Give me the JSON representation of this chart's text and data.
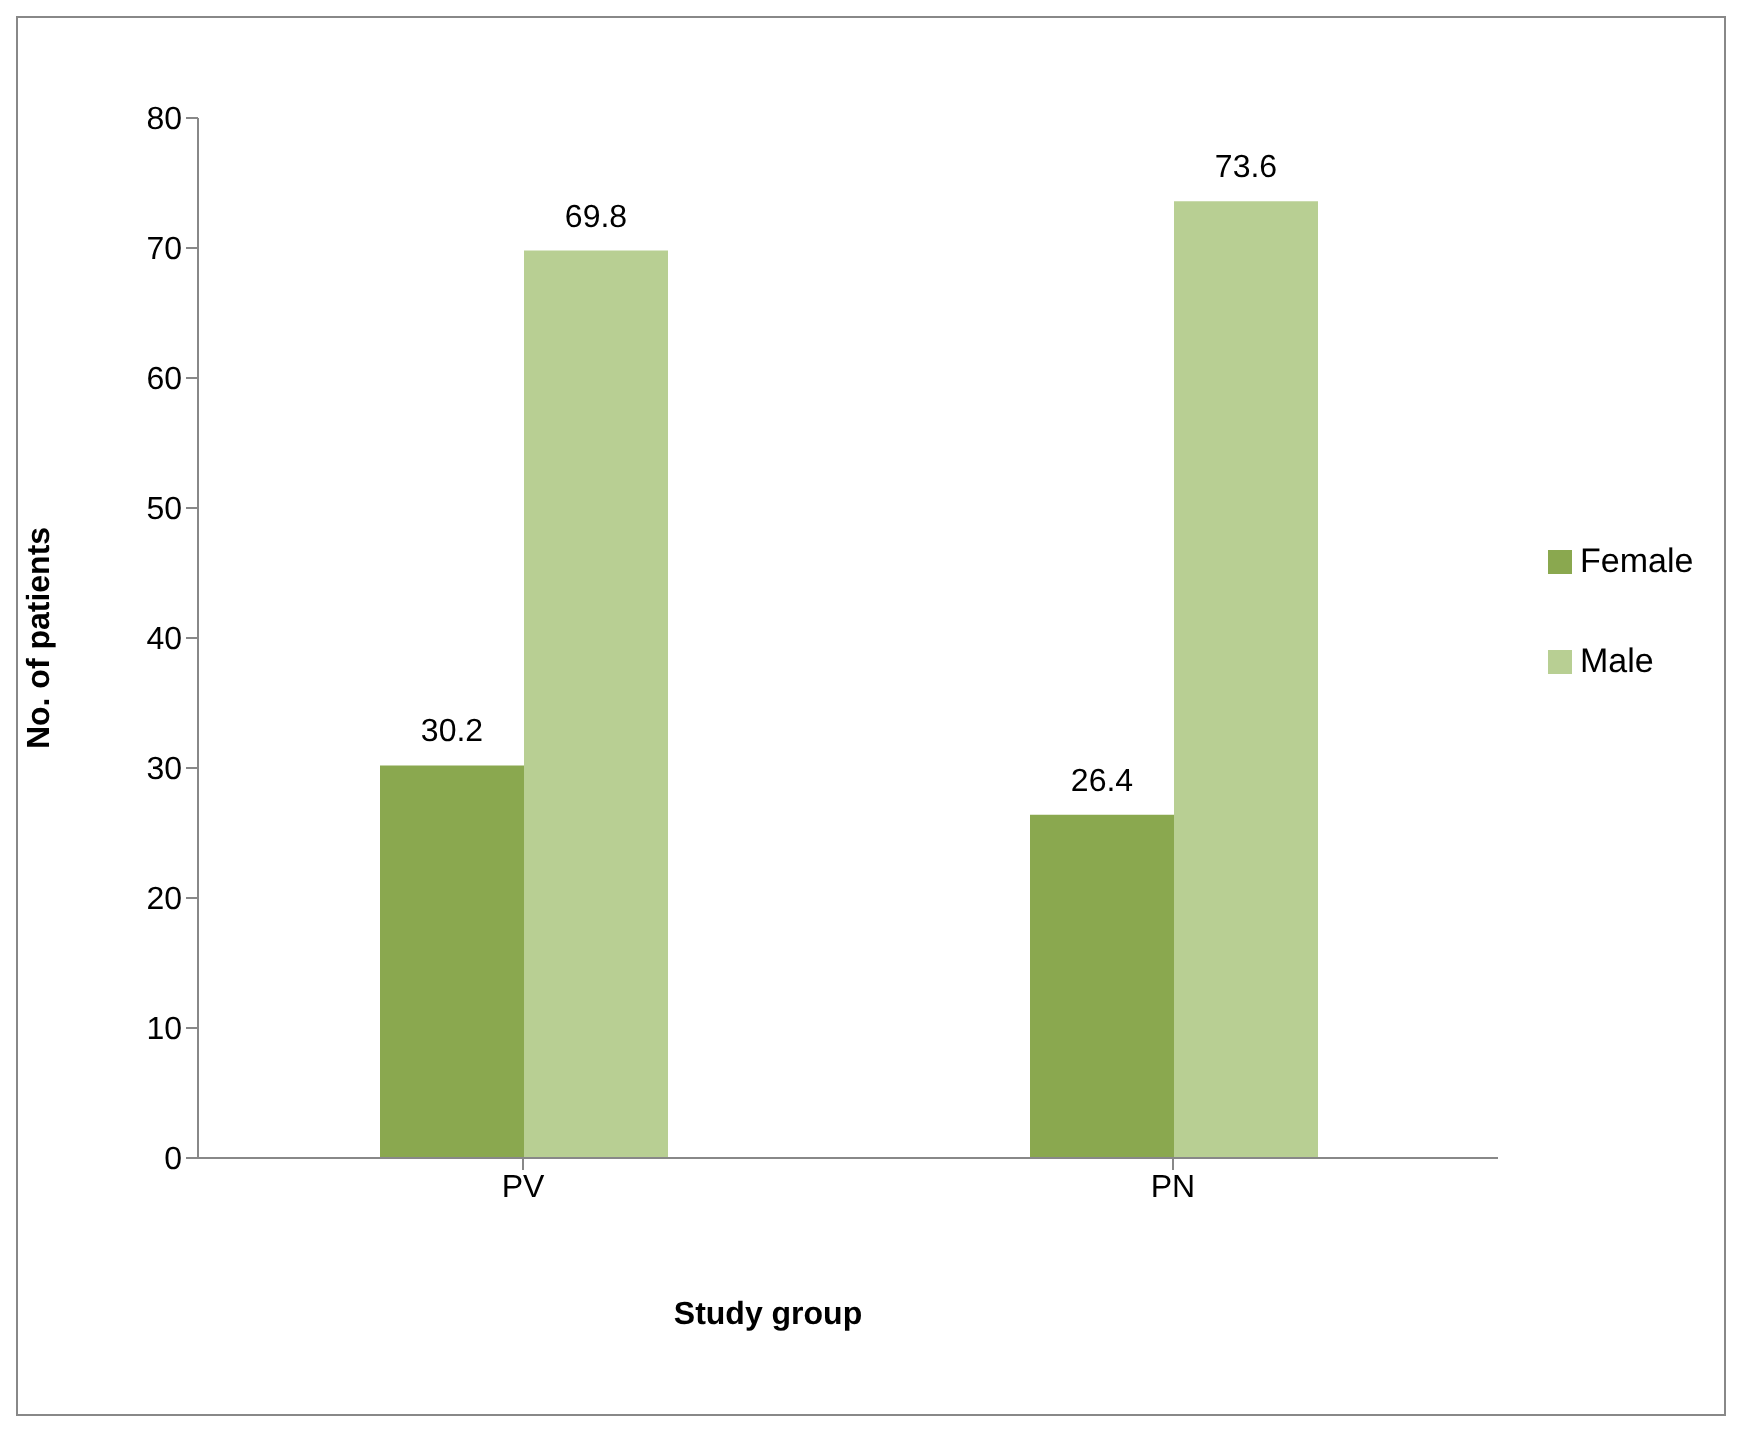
{
  "chart_data": {
    "type": "bar",
    "xlabel": "Study group",
    "ylabel": "No. of patients",
    "categories": [
      "PV",
      "PN"
    ],
    "series": [
      {
        "name": "Female",
        "color": "#8aa84f",
        "values": [
          30.2,
          26.4
        ]
      },
      {
        "name": "Male",
        "color": "#b8cf93",
        "values": [
          69.8,
          73.6
        ]
      }
    ],
    "ylim": [
      0,
      80
    ],
    "yticks": [
      0,
      10,
      20,
      30,
      40,
      50,
      60,
      70,
      80
    ],
    "grid": false,
    "legend": "right",
    "data_labels": true
  }
}
